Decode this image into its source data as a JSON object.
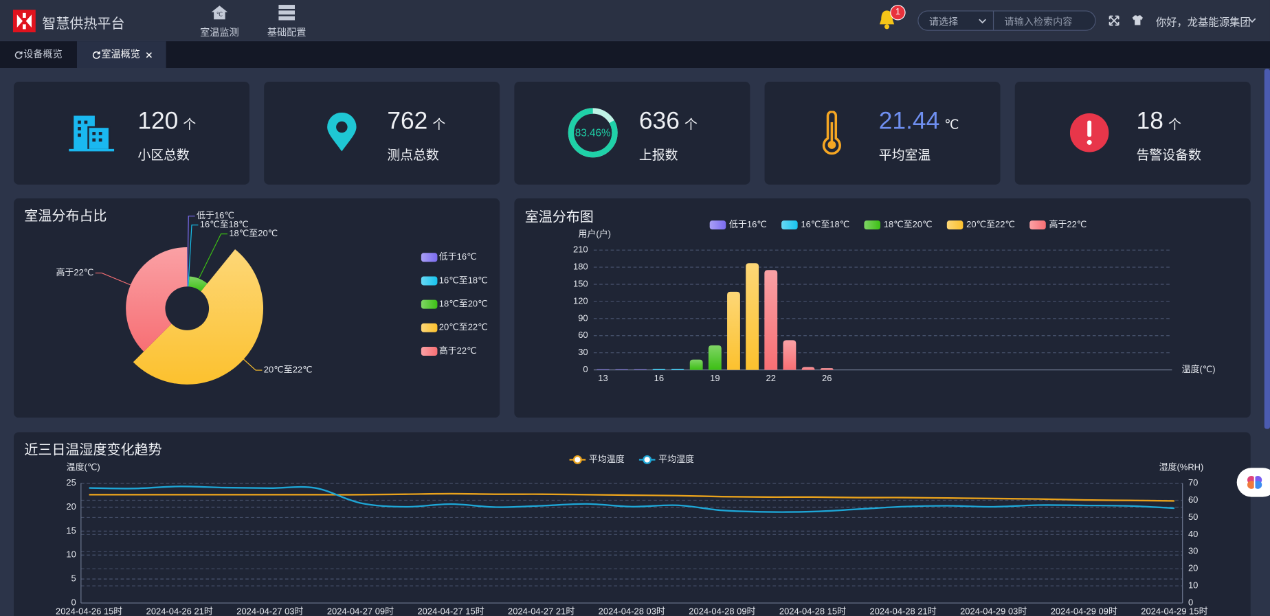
{
  "header": {
    "title": "智慧供热平台",
    "nav": [
      "室温监测",
      "基础配置"
    ],
    "notifications": 1,
    "select_placeholder": "请选择",
    "search_placeholder": "请输入检索内容",
    "greeting": "你好，龙基能源集团"
  },
  "tabs": [
    "设备概览",
    "室温概览"
  ],
  "stats": {
    "cards": [
      {
        "value": 120,
        "unit": "个",
        "label": "小区总数"
      },
      {
        "value": 762,
        "unit": "个",
        "label": "测点总数"
      },
      {
        "value": 636,
        "unit": "个",
        "label": "上报数",
        "rate": {
          "value": 83.46,
          "label": "83.46%"
        }
      },
      {
        "value": 21.44,
        "unit": "℃",
        "label": "平均室温"
      },
      {
        "value": 18,
        "unit": "个",
        "label": "告警设备数"
      }
    ]
  },
  "chart_data": [
    {
      "type": "pie",
      "rose": true,
      "title": "室温分布占比",
      "categories": [
        "低于16℃",
        "16℃至18℃",
        "18℃至20℃",
        "20℃至22℃",
        "高于22℃"
      ],
      "values": [
        3,
        4,
        61,
        324,
        235
      ],
      "colors": [
        "#7b6cf0",
        "#17c3ee",
        "#3cbf14",
        "#fcc12e",
        "#f76f74"
      ],
      "legend": "right"
    },
    {
      "type": "bar",
      "title": "室温分布图",
      "y_label": "用户(户)",
      "x_label": "温度(℃)",
      "categories": [
        "13",
        null,
        null,
        "16",
        null,
        null,
        "19",
        null,
        null,
        "22",
        null,
        null,
        "26",
        null,
        null,
        null,
        null,
        null,
        null,
        null,
        null,
        null,
        null,
        null,
        null,
        null,
        null,
        null,
        null,
        null,
        null
      ],
      "series": [
        {
          "name": "低于16℃",
          "color": "#7b6cf0",
          "values": [
            1,
            1,
            1,
            null,
            null,
            null,
            null,
            null,
            null,
            null,
            null,
            null,
            null,
            null,
            null,
            null,
            null,
            null,
            null,
            null,
            null,
            null,
            null,
            null,
            null,
            null,
            null,
            null,
            null,
            null,
            null
          ]
        },
        {
          "name": "16℃至18℃",
          "color": "#17c3ee",
          "values": [
            null,
            null,
            null,
            2,
            2,
            null,
            null,
            null,
            null,
            null,
            null,
            null,
            null,
            null,
            null,
            null,
            null,
            null,
            null,
            null,
            null,
            null,
            null,
            null,
            null,
            null,
            null,
            null,
            null,
            null,
            null
          ]
        },
        {
          "name": "18℃至20℃",
          "color": "#3cbf14",
          "values": [
            null,
            null,
            null,
            null,
            null,
            18,
            43,
            null,
            null,
            null,
            null,
            null,
            null,
            null,
            null,
            null,
            null,
            null,
            null,
            null,
            null,
            null,
            null,
            null,
            null,
            null,
            null,
            null,
            null,
            null,
            null
          ]
        },
        {
          "name": "20℃至22℃",
          "color": "#fcc12e",
          "values": [
            null,
            null,
            null,
            null,
            null,
            null,
            null,
            137,
            187,
            null,
            null,
            null,
            null,
            null,
            null,
            null,
            null,
            null,
            null,
            null,
            null,
            null,
            null,
            null,
            null,
            null,
            null,
            null,
            null,
            null,
            null
          ]
        },
        {
          "name": "高于22℃",
          "color": "#f76f74",
          "values": [
            null,
            null,
            null,
            null,
            null,
            null,
            null,
            null,
            null,
            175,
            52,
            5,
            3,
            null,
            null,
            null,
            null,
            null,
            null,
            null,
            null,
            null,
            null,
            null,
            null,
            null,
            null,
            null,
            null,
            null,
            null
          ]
        }
      ],
      "ylim": [
        0,
        210
      ],
      "yticks": [
        0,
        30,
        60,
        90,
        120,
        150,
        180,
        210
      ],
      "grid": true,
      "legend": "top"
    },
    {
      "type": "line",
      "title": "近三日温湿度变化趋势",
      "y_label": "温度(℃)",
      "y2_label": "湿度(%RH)",
      "categories": [
        "2024-04-26 15时",
        null,
        "2024-04-26 21时",
        null,
        "2024-04-27 03时",
        null,
        "2024-04-27 09时",
        null,
        "2024-04-27 15时",
        null,
        "2024-04-27 21时",
        null,
        "2024-04-28 03时",
        null,
        "2024-04-28 09时",
        null,
        "2024-04-28 15时",
        null,
        "2024-04-28 21时",
        null,
        "2024-04-29 03时",
        null,
        "2024-04-29 09时",
        null,
        "2024-04-29 15时"
      ],
      "series": [
        {
          "name": "平均温度",
          "color": "#e9a21c",
          "values": [
            22.6,
            22.6,
            22.6,
            22.6,
            22.6,
            22.6,
            22.6,
            22.7,
            22.8,
            22.7,
            22.7,
            22.6,
            22.5,
            22.4,
            22.2,
            22.1,
            22.1,
            22.0,
            22.0,
            21.9,
            21.8,
            21.7,
            21.5,
            21.4,
            21.3
          ]
        },
        {
          "name": "平均湿度",
          "color": "#1ea6d6",
          "axis": "y2",
          "values": [
            67.2,
            66.9,
            68.1,
            67.4,
            67.1,
            67.2,
            58.4,
            56.2,
            57.8,
            56.0,
            56.8,
            57.9,
            56.3,
            57.1,
            54.1,
            53.2,
            53.4,
            54.8,
            56.3,
            56.8,
            56.2,
            57.2,
            57.0,
            56.7,
            55.4
          ]
        }
      ],
      "ylim": [
        0,
        25
      ],
      "yticks": [
        0,
        5,
        10,
        15,
        20,
        25
      ],
      "y2lim": [
        0,
        70
      ],
      "y2ticks": [
        0,
        10,
        20,
        30,
        40,
        50,
        60,
        70
      ],
      "grid": true,
      "legend": "top"
    }
  ]
}
